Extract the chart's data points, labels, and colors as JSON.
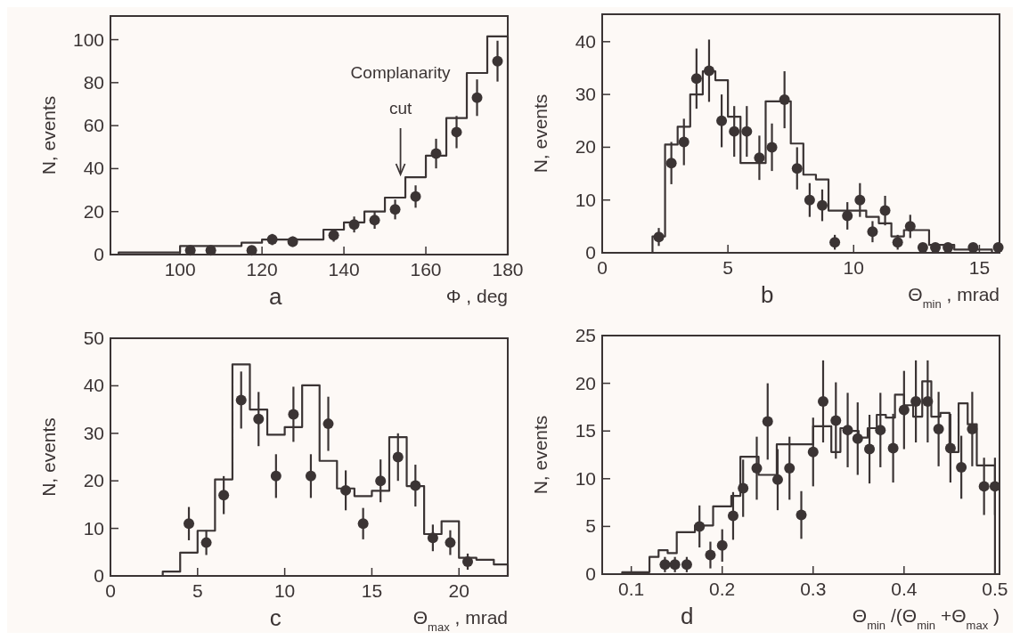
{
  "chart_data": [
    {
      "type": "histogram",
      "xlabel": "Φ , deg",
      "ylabel": "N, events",
      "color": "#3b3434",
      "bins": [
        85,
        90,
        95,
        100,
        105,
        110,
        115,
        120,
        125,
        130,
        135,
        140,
        145,
        150,
        155,
        160,
        165,
        170,
        175,
        180
      ],
      "values": [
        1,
        1,
        1,
        4,
        4,
        4,
        5.5,
        7,
        7,
        7,
        11.6,
        15,
        20,
        26.5,
        36,
        46,
        63.5,
        84.5,
        101.5
      ],
      "series": [
        {
          "type": "scatter",
          "color": "#3b3434",
          "marker": "circle",
          "x": [
            102.5,
            107.5,
            117.5,
            122.5,
            127.5,
            137.5,
            142.5,
            147.5,
            152.5,
            157.5,
            162.5,
            167.5,
            172.5,
            177.5
          ],
          "values": [
            2,
            2,
            2,
            7,
            6,
            9,
            14,
            16,
            21,
            27,
            47,
            57,
            73,
            90
          ],
          "errors": [
            1.4,
            1.4,
            1.4,
            2.6,
            2.4,
            3,
            3.7,
            4,
            4.6,
            5.2,
            6.9,
            7.5,
            8.5,
            9.5
          ]
        }
      ],
      "xlim": [
        83,
        180
      ],
      "xticks": [
        100,
        120,
        140,
        160,
        180
      ],
      "ylim": [
        0,
        111
      ],
      "yticks": [
        0,
        20,
        40,
        60,
        80,
        100
      ],
      "annotations": [
        "Complanarity cut",
        "a"
      ]
    },
    {
      "type": "histogram",
      "xlabel": "Θ$_{min}$ , mrad",
      "ylabel": "N, events",
      "color": "#3b3434",
      "bins": [
        2,
        2.5,
        3,
        3.5,
        4,
        4.5,
        5,
        5.5,
        6,
        6.5,
        7,
        7.5,
        8,
        8.5,
        9,
        9.5,
        10,
        10.5,
        11,
        11.5,
        12,
        12.5,
        13,
        13.5,
        14,
        14.5,
        15,
        15.5
      ],
      "values": [
        3.1,
        20.5,
        23.9,
        30,
        34.4,
        32.7,
        25.8,
        17,
        17,
        28.7,
        28.7,
        20.7,
        14.8,
        13.9,
        8,
        8,
        8,
        6.8,
        5.6,
        3.1,
        4.3,
        4.3,
        1.5,
        1.5,
        0.6,
        0.6,
        0.6
      ],
      "series": [
        {
          "type": "scatter",
          "color": "#3b3434",
          "marker": "circle",
          "x": [
            2.25,
            2.75,
            3.25,
            3.75,
            4.25,
            4.75,
            5.25,
            5.75,
            6.25,
            6.75,
            7.25,
            7.75,
            8.25,
            8.75,
            9.25,
            9.75,
            10.25,
            10.75,
            11.25,
            11.75,
            12.25,
            12.75,
            13.25,
            13.75,
            14.75,
            15.75
          ],
          "values": [
            3,
            17,
            21,
            33,
            34.5,
            25,
            23,
            23,
            18,
            20,
            29,
            16,
            10,
            9,
            2,
            7,
            10,
            4,
            8,
            2,
            5,
            1,
            1,
            1,
            1,
            1
          ],
          "errors": [
            1.7,
            4,
            4.4,
            5.7,
            5.9,
            5,
            4.8,
            4.8,
            4.2,
            4.5,
            5.4,
            4,
            3.2,
            3,
            1.4,
            2.6,
            3.2,
            2,
            2.8,
            1.4,
            2.2,
            null,
            null,
            null,
            null,
            null
          ]
        }
      ],
      "xlim": [
        0,
        15.8
      ],
      "xticks": [
        0,
        5,
        10,
        15
      ],
      "ylim": [
        0,
        45.2
      ],
      "yticks": [
        0,
        10,
        20,
        30,
        40
      ],
      "annotations": [
        "b"
      ]
    },
    {
      "type": "histogram",
      "xlabel": "Θ$_{max}$ , mrad",
      "ylabel": "N, events",
      "color": "#3b3434",
      "bins": [
        3,
        4,
        5,
        6,
        7,
        8,
        9,
        10,
        11,
        12,
        13,
        14,
        15,
        16,
        17,
        18,
        19,
        20,
        21,
        22,
        22.8
      ],
      "values": [
        0.9,
        4.9,
        9.5,
        20.3,
        44.5,
        35,
        29.7,
        31.3,
        40.1,
        24.2,
        18.4,
        16.8,
        17.9,
        29.2,
        18.9,
        8.8,
        11.5,
        3.8,
        3.4,
        2.4
      ],
      "series": [
        {
          "type": "scatter",
          "color": "#3b3434",
          "marker": "circle",
          "x": [
            4.5,
            5.5,
            6.5,
            7.5,
            8.5,
            9.5,
            10.5,
            11.5,
            12.5,
            13.5,
            14.5,
            15.5,
            16.5,
            17.5,
            18.5,
            19.5,
            20.5
          ],
          "values": [
            11,
            7,
            17,
            37,
            33,
            21,
            34,
            21,
            32,
            18,
            11,
            20,
            25,
            19,
            8,
            7,
            3
          ],
          "errors": [
            3.5,
            2.6,
            4,
            6,
            5.7,
            4.6,
            5.8,
            4.6,
            5.7,
            4.2,
            3.3,
            4.5,
            5,
            4.4,
            2.8,
            2.6,
            1.7
          ]
        }
      ],
      "xlim": [
        0,
        22.8
      ],
      "xticks": [
        0,
        5,
        10,
        15,
        20
      ],
      "ylim": [
        0,
        50
      ],
      "yticks": [
        0,
        10,
        20,
        30,
        40,
        50
      ],
      "annotations": [
        "c"
      ]
    },
    {
      "type": "histogram",
      "xlabel": "Θ$_{min}$/(Θ$_{min}$+Θ$_{max}$)",
      "ylabel": "N, events",
      "color": "#3b3434",
      "bins": [
        0.09,
        0.1,
        0.11,
        0.12,
        0.13,
        0.14,
        0.15,
        0.16,
        0.17,
        0.18,
        0.19,
        0.2,
        0.21,
        0.22,
        0.23,
        0.24,
        0.25,
        0.26,
        0.27,
        0.28,
        0.29,
        0.3,
        0.31,
        0.32,
        0.33,
        0.34,
        0.35,
        0.36,
        0.37,
        0.38,
        0.39,
        0.4,
        0.41,
        0.42,
        0.43,
        0.44,
        0.45,
        0.46,
        0.47,
        0.48,
        0.49,
        0.5
      ],
      "values": [
        0.2,
        0.2,
        0.2,
        1.8,
        2.5,
        2.2,
        4.4,
        4.4,
        5.1,
        5.1,
        7.1,
        7.1,
        8.2,
        12.3,
        12.3,
        10.4,
        10.4,
        13.6,
        13.6,
        13.6,
        13.6,
        15.5,
        15.5,
        12.8,
        15.3,
        15,
        14.3,
        15.3,
        16.7,
        16.4,
        18.8,
        17.7,
        16.5,
        20.2,
        16.5,
        16.9,
        12.8,
        17.9,
        15.7,
        11.4,
        11.4
      ],
      "series": [
        {
          "type": "scatter",
          "color": "#3b3434",
          "marker": "circle",
          "x": [
            0.137,
            0.148,
            0.161,
            0.175,
            0.187,
            0.2,
            0.212,
            0.223,
            0.238,
            0.25,
            0.261,
            0.274,
            0.287,
            0.3,
            0.311,
            0.325,
            0.338,
            0.349,
            0.362,
            0.374,
            0.388,
            0.4,
            0.413,
            0.426,
            0.438,
            0.451,
            0.463,
            0.475,
            0.488,
            0.5
          ],
          "values": [
            1,
            1,
            1,
            5,
            2,
            3,
            6.1,
            9,
            11.1,
            16,
            9.9,
            11.1,
            6.2,
            12.8,
            18.1,
            16.1,
            15.1,
            14.2,
            13.1,
            15.1,
            13.2,
            17.2,
            18.1,
            18.1,
            15.2,
            13.2,
            11.2,
            15.2,
            9.2,
            9.2
          ],
          "errors": [
            0.8,
            0.8,
            0.8,
            2.2,
            1.4,
            1.7,
            2.5,
            3,
            3.3,
            4,
            3.2,
            3.3,
            2.5,
            3.6,
            4.3,
            4,
            3.9,
            3.8,
            3.6,
            3.9,
            3.6,
            4.1,
            4.3,
            4.3,
            3.9,
            3.6,
            3.3,
            3.9,
            3,
            3
          ]
        }
      ],
      "xlim": [
        0.068,
        0.505
      ],
      "xticks": [
        0.1,
        0.2,
        0.3,
        0.4,
        0.5
      ],
      "ylim": [
        0,
        25
      ],
      "yticks": [
        0,
        5,
        10,
        15,
        20,
        25
      ],
      "annotations": [
        "d"
      ]
    }
  ]
}
